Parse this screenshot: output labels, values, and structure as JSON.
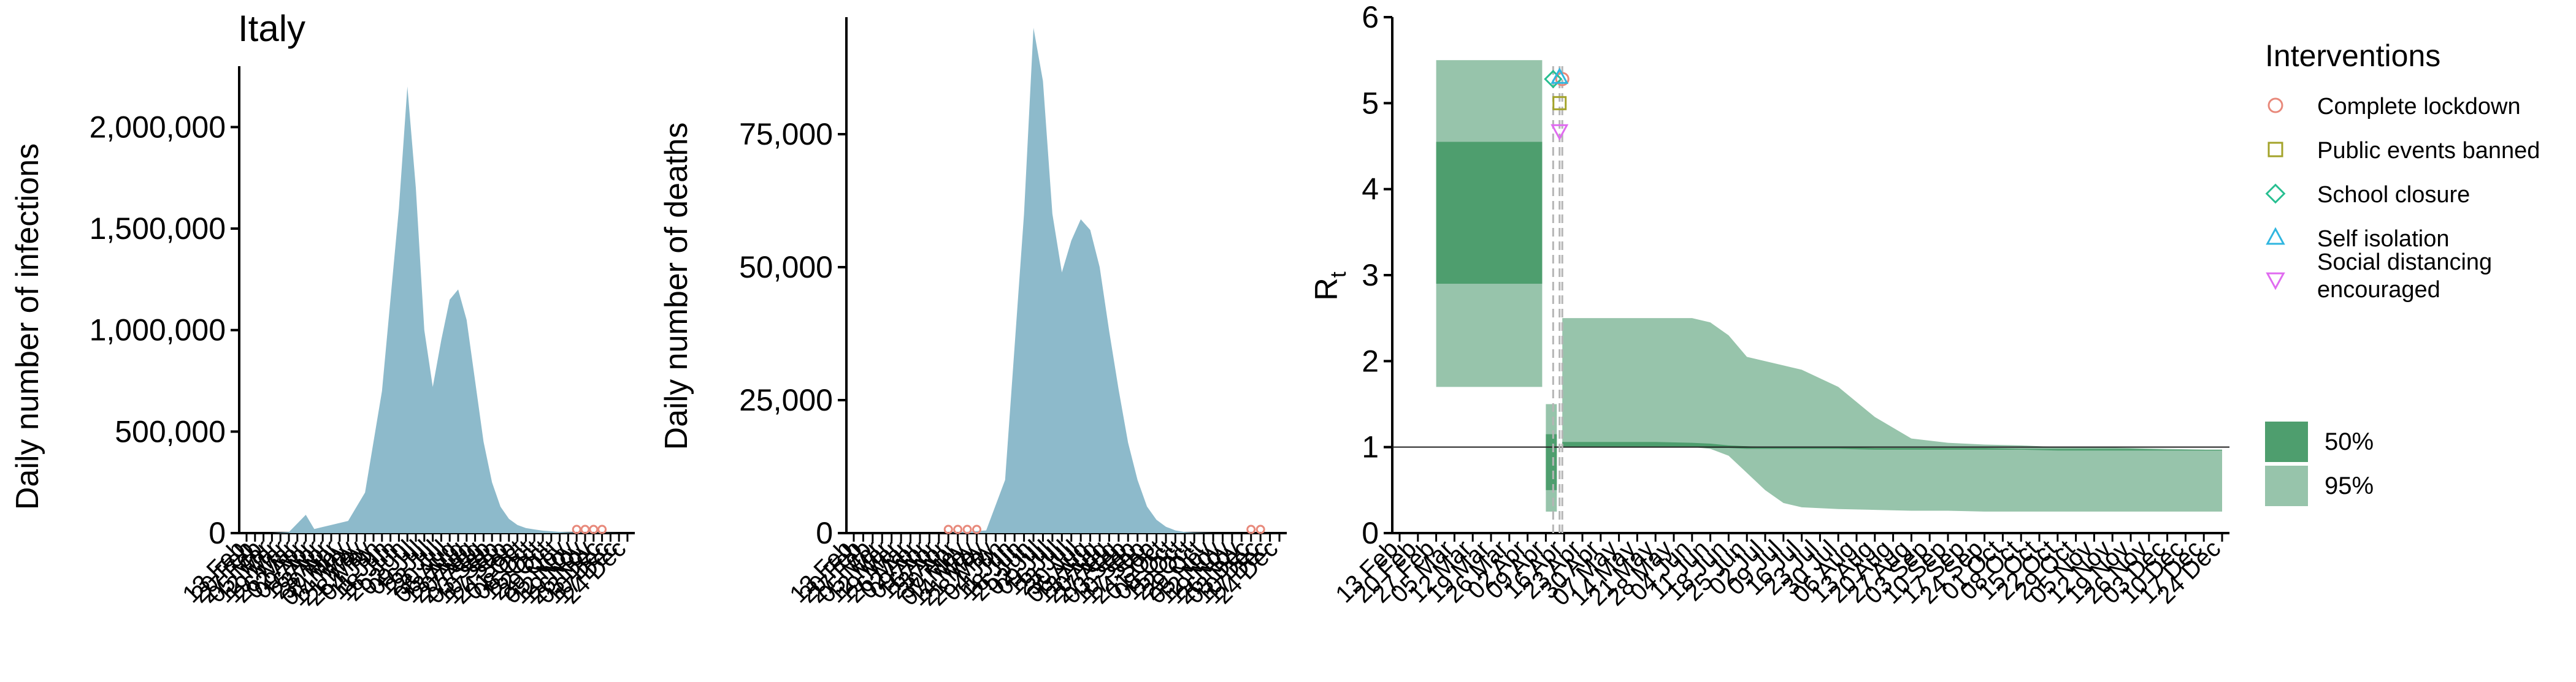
{
  "page_title": "Italy",
  "colors": {
    "infections_fill": "#8DBACB",
    "rt_ci95": "#97C4AB",
    "rt_ci50": "#4E9E6E",
    "lockdown": "#E8897B",
    "events": "#A3A32A",
    "school": "#28BF91",
    "isolation": "#30B6E0",
    "distancing": "#E06BF0"
  },
  "chart_data": [
    {
      "type": "area",
      "title": "Italy",
      "ylabel": "Daily number of infections",
      "xlabel": "",
      "ylim": [
        0,
        2300000
      ],
      "yticks": [
        0,
        500000,
        1000000,
        1500000,
        2000000
      ],
      "ytick_labels": [
        "0",
        "500,000",
        "1,000,000",
        "1,500,000",
        "2,000,000"
      ],
      "x_tick_labels": [
        "13 Feb",
        "20 Feb",
        "27 Feb",
        "05 Mar",
        "12 Mar",
        "19 Mar",
        "26 Mar",
        "02 Apr",
        "09 Apr",
        "16 Apr",
        "23 Apr",
        "30 Apr",
        "07 May",
        "14 May",
        "21 May",
        "28 May",
        "04 Jun",
        "11 Jun",
        "18 Jun",
        "25 Jun",
        "02 Jul",
        "09 Jul",
        "16 Jul",
        "23 Jul",
        "30 Jul",
        "06 Aug",
        "13 Aug",
        "20 Aug",
        "27 Aug",
        "03 Sep",
        "10 Sep",
        "17 Sep",
        "24 Sep",
        "01 Oct",
        "08 Oct",
        "15 Oct",
        "22 Oct",
        "29 Oct",
        "05 Nov",
        "12 Nov",
        "19 Nov",
        "26 Nov",
        "03 Dec",
        "10 Dec",
        "17 Dec",
        "24 Dec"
      ],
      "series": [
        {
          "x_index": [
            0,
            3,
            5,
            7,
            8,
            9,
            10,
            12,
            14,
            16,
            18,
            19,
            20,
            21,
            22,
            23,
            24,
            25,
            26,
            27,
            28,
            29,
            30,
            31,
            32,
            33,
            34,
            35,
            36,
            37,
            38,
            39,
            40,
            42,
            44
          ],
          "values": [
            0,
            0,
            5000,
            90000,
            20000,
            30000,
            40000,
            60000,
            200000,
            700000,
            1600000,
            2200000,
            1700000,
            1000000,
            720000,
            950000,
            1150000,
            1200000,
            1050000,
            750000,
            450000,
            250000,
            130000,
            70000,
            40000,
            25000,
            18000,
            12000,
            9000,
            6000,
            4000,
            3000,
            2000,
            1000,
            0
          ]
        }
      ],
      "markers": [
        {
          "name": "Complete lockdown",
          "x_index": [
            39,
            40,
            41,
            42
          ]
        }
      ]
    },
    {
      "type": "area",
      "title": "",
      "ylabel": "Daily number of deaths",
      "xlabel": "",
      "ylim": [
        0,
        97000
      ],
      "yticks": [
        0,
        25000,
        50000,
        75000
      ],
      "ytick_labels": [
        "0",
        "25,000",
        "50,000",
        "75,000"
      ],
      "x_tick_labels": [
        "13 Feb",
        "20 Feb",
        "27 Feb",
        "05 Mar",
        "12 Mar",
        "19 Mar",
        "26 Mar",
        "02 Apr",
        "09 Apr",
        "16 Apr",
        "23 Apr",
        "30 Apr",
        "07 May",
        "14 May",
        "21 May",
        "28 May",
        "04 Jun",
        "11 Jun",
        "18 Jun",
        "25 Jun",
        "02 Jul",
        "09 Jul",
        "16 Jul",
        "23 Jul",
        "30 Jul",
        "06 Aug",
        "13 Aug",
        "20 Aug",
        "27 Aug",
        "03 Sep",
        "10 Sep",
        "17 Sep",
        "24 Sep",
        "01 Oct",
        "08 Oct",
        "15 Oct",
        "22 Oct",
        "29 Oct",
        "05 Nov",
        "12 Nov",
        "19 Nov",
        "26 Nov",
        "03 Dec",
        "10 Dec",
        "17 Dec",
        "24 Dec"
      ],
      "series": [
        {
          "x_index": [
            0,
            10,
            14,
            16,
            18,
            19,
            20,
            21,
            22,
            23,
            24,
            25,
            26,
            27,
            28,
            29,
            30,
            31,
            32,
            33,
            34,
            35,
            36,
            37,
            38,
            40,
            44
          ],
          "values": [
            0,
            0,
            500,
            10000,
            60000,
            95000,
            85000,
            60000,
            49000,
            55000,
            59000,
            57000,
            50000,
            38000,
            27000,
            17000,
            10000,
            5000,
            2500,
            1200,
            500,
            200,
            100,
            50,
            0,
            0,
            0
          ]
        }
      ],
      "markers": [
        {
          "name": "Complete lockdown",
          "x_index": [
            10,
            11,
            12,
            13,
            42,
            43
          ]
        }
      ]
    },
    {
      "type": "area",
      "title": "",
      "ylabel": "R",
      "ylabel_subscript": "t",
      "xlabel": "",
      "ylim": [
        0,
        6
      ],
      "yticks": [
        0,
        1,
        2,
        3,
        4,
        5,
        6
      ],
      "ytick_labels": [
        "0",
        "1",
        "2",
        "3",
        "4",
        "5",
        "6"
      ],
      "x_tick_labels": [
        "13 Feb",
        "20 Feb",
        "27 Feb",
        "05 Mar",
        "12 Mar",
        "19 Mar",
        "26 Mar",
        "02 Apr",
        "09 Apr",
        "16 Apr",
        "23 Apr",
        "30 Apr",
        "07 May",
        "14 May",
        "21 May",
        "28 May",
        "04 Jun",
        "11 Jun",
        "18 Jun",
        "25 Jun",
        "02 Jul",
        "09 Jul",
        "16 Jul",
        "23 Jul",
        "30 Jul",
        "06 Aug",
        "13 Aug",
        "20 Aug",
        "27 Aug",
        "03 Sep",
        "10 Sep",
        "17 Sep",
        "24 Sep",
        "01 Oct",
        "08 Oct",
        "15 Oct",
        "22 Oct",
        "29 Oct",
        "05 Nov",
        "12 Nov",
        "19 Nov",
        "26 Nov",
        "03 Dec",
        "10 Dec",
        "17 Dec",
        "24 Dec"
      ],
      "reference_line": 1,
      "bands": [
        {
          "name": "pre-intervention",
          "x_start": 2.0,
          "x_end": 7.8,
          "ci95": [
            1.7,
            5.5
          ],
          "ci50": [
            2.9,
            4.55
          ]
        },
        {
          "name": "between-interventions",
          "x_start": 8.0,
          "x_end": 8.6,
          "ci95": [
            0.25,
            1.5
          ],
          "ci50": [
            0.5,
            1.15
          ]
        },
        {
          "name": "post-interventions",
          "x_start": 8.9,
          "x_end": 45.0,
          "x_index": [
            8.9,
            10,
            12,
            14,
            16,
            17,
            18,
            19,
            20,
            21,
            22,
            24,
            26,
            28,
            30,
            32,
            34,
            36,
            38,
            40,
            42,
            44,
            45
          ],
          "ci95_low": [
            1.0,
            1.0,
            1.0,
            1.0,
            1.0,
            0.98,
            0.9,
            0.7,
            0.5,
            0.35,
            0.3,
            0.28,
            0.27,
            0.26,
            0.26,
            0.25,
            0.25,
            0.25,
            0.25,
            0.25,
            0.25,
            0.25,
            0.25
          ],
          "ci95_high": [
            2.5,
            2.5,
            2.5,
            2.5,
            2.5,
            2.45,
            2.3,
            2.05,
            2.0,
            1.95,
            1.9,
            1.7,
            1.35,
            1.1,
            1.05,
            1.03,
            1.02,
            1.0,
            1.0,
            0.99,
            0.98,
            0.97,
            0.96
          ],
          "ci50_low": [
            1.0,
            1.0,
            1.0,
            1.0,
            1.0,
            0.99,
            0.99,
            0.98,
            0.98,
            0.98,
            0.98,
            0.98,
            0.97,
            0.97,
            0.97,
            0.97,
            0.97,
            0.96,
            0.96,
            0.96,
            0.96,
            0.96,
            0.96
          ],
          "ci50_high": [
            1.06,
            1.06,
            1.06,
            1.06,
            1.05,
            1.04,
            1.02,
            1.01,
            1.0,
            1.0,
            1.0,
            1.0,
            0.99,
            0.99,
            0.99,
            0.99,
            0.98,
            0.98,
            0.98,
            0.98,
            0.97,
            0.97,
            0.97
          ]
        }
      ],
      "intervention_dates": [
        {
          "name": "Complete lockdown",
          "x_index": 8.9,
          "rt": 5.28
        },
        {
          "name": "Public events banned",
          "x_index": 8.75,
          "rt": 5.0
        },
        {
          "name": "School closure",
          "x_index": 8.4,
          "rt": 5.28
        },
        {
          "name": "Self isolation",
          "x_index": 8.75,
          "rt": 5.3
        },
        {
          "name": "Social distancing\n encouraged",
          "x_index": 8.75,
          "rt": 4.68
        }
      ]
    }
  ],
  "legend": {
    "interventions_title": "Interventions",
    "interventions": [
      {
        "label": "Complete lockdown",
        "shape": "circle",
        "color": "#E8897B"
      },
      {
        "label": "Public events banned",
        "shape": "square",
        "color": "#A3A32A"
      },
      {
        "label": "School closure",
        "shape": "diamond",
        "color": "#28BF91"
      },
      {
        "label": "Self isolation",
        "shape": "triangle-up",
        "color": "#30B6E0"
      },
      {
        "label": "Social distancing",
        "label2": " encouraged",
        "shape": "triangle-down",
        "color": "#E06BF0"
      }
    ],
    "ci": [
      {
        "label": "50%",
        "color": "#4E9E6E"
      },
      {
        "label": "95%",
        "color": "#97C4AB"
      }
    ]
  }
}
